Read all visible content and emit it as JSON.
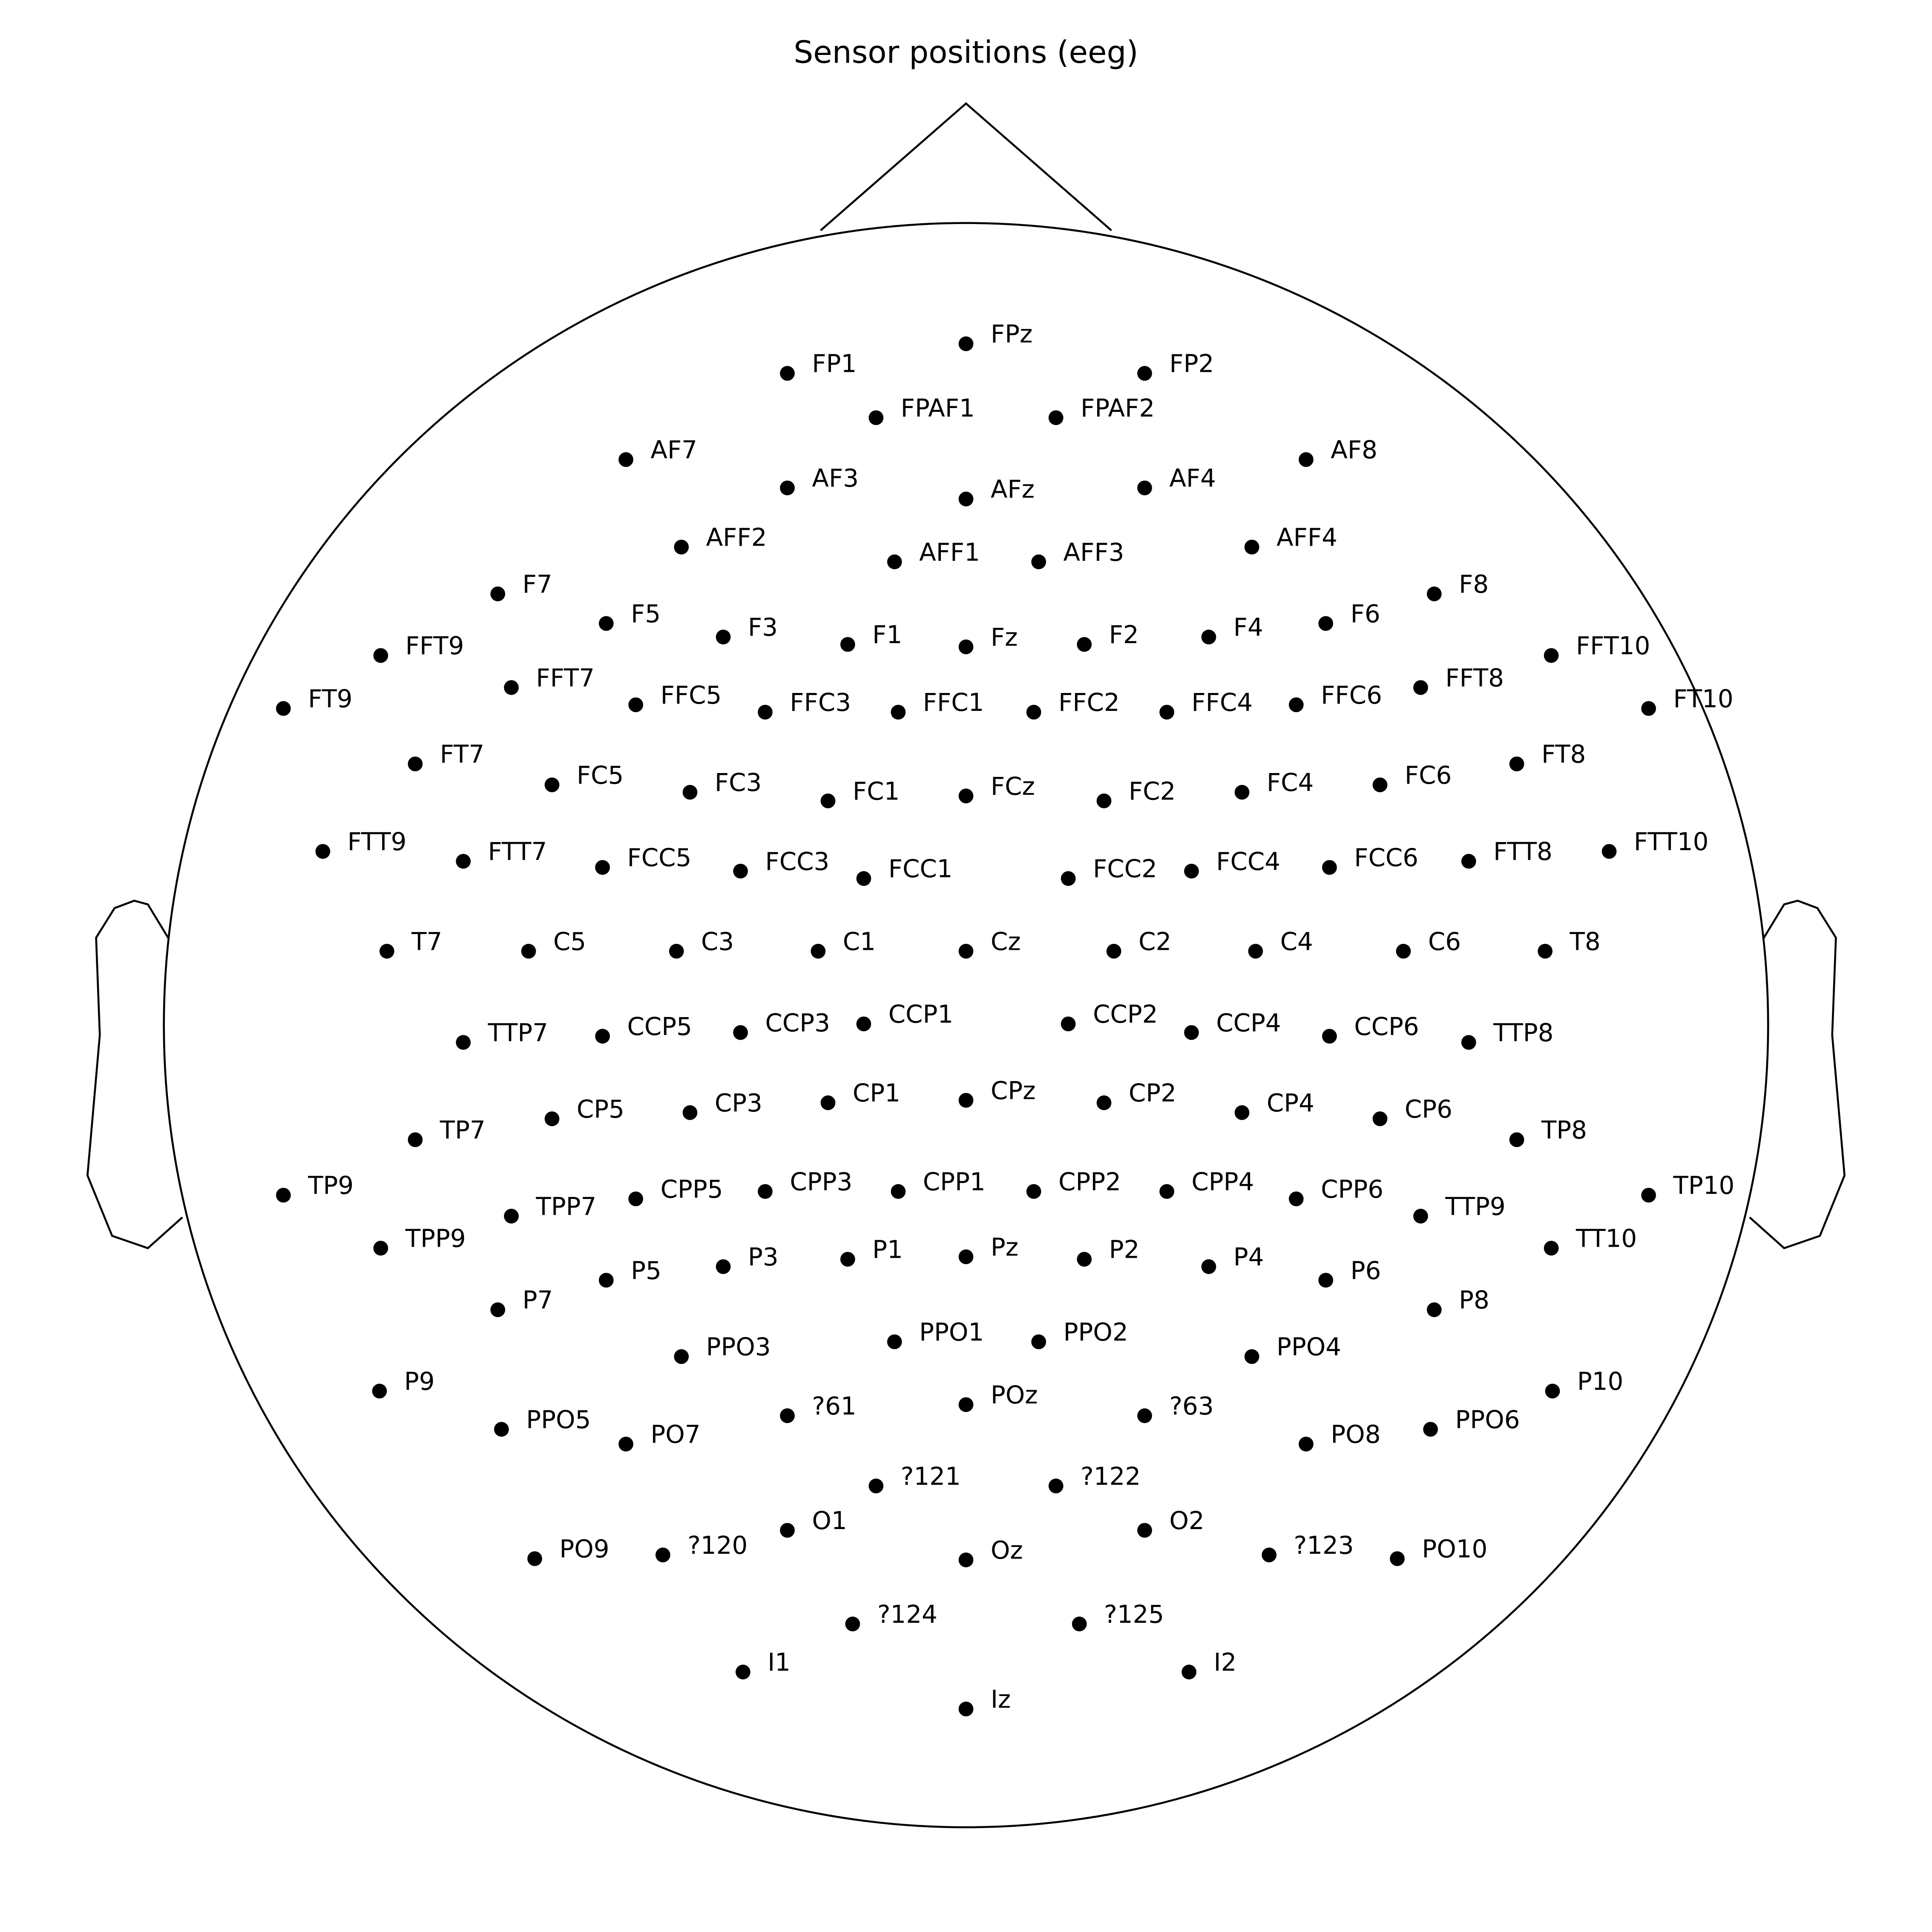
{
  "title": "Sensor positions (eeg)",
  "colors": {
    "outline": "#000000",
    "sensor": "#000000",
    "background": "#ffffff"
  },
  "sensors": [
    "FPz",
    "FP1",
    "FP2",
    "FPAF1",
    "FPAF2",
    "AF7",
    "AF8",
    "AF3",
    "AF4",
    "AFz",
    "AFF2",
    "AFF4",
    "AFF1",
    "AFF3",
    "F7",
    "F8",
    "F5",
    "F6",
    "F3",
    "F4",
    "F1",
    "F2",
    "Fz",
    "FFT9",
    "FFT10",
    "FT9",
    "FT10",
    "FFT7",
    "FFT8",
    "FFC5",
    "FFC6",
    "FFC3",
    "FFC4",
    "FFC1",
    "FFC2",
    "FT7",
    "FT8",
    "FC5",
    "FC6",
    "FC3",
    "FC4",
    "FC1",
    "FC2",
    "FCz",
    "FTT9",
    "FTT10",
    "FTT7",
    "FTT8",
    "FCC5",
    "FCC6",
    "FCC3",
    "FCC4",
    "FCC1",
    "FCC2",
    "T7",
    "C5",
    "C3",
    "C1",
    "Cz",
    "C2",
    "C4",
    "C6",
    "T8",
    "TTP7",
    "CCP5",
    "CCP3",
    "CCP1",
    "CCP2",
    "CCP4",
    "CCP6",
    "TTP8",
    "TP7",
    "CP5",
    "CP3",
    "CP1",
    "CPz",
    "CP2",
    "CP4",
    "CP6",
    "TP8",
    "TP9",
    "TP10",
    "TPP7",
    "TTP9",
    "CPP5",
    "CPP6",
    "CPP3",
    "CPP4",
    "CPP1",
    "CPP2",
    "TPP9",
    "TT10",
    "P7",
    "P8",
    "P5",
    "P6",
    "P3",
    "P4",
    "P1",
    "P2",
    "Pz",
    "PPO3",
    "PPO4",
    "PPO1",
    "PPO2",
    "P9",
    "P10",
    "PPO5",
    "PPO6",
    "PO7",
    "PO8",
    "?61",
    "?63",
    "POz",
    "?121",
    "?122",
    "PO9",
    "PO10",
    "?120",
    "?123",
    "O1",
    "O2",
    "Oz",
    "?124",
    "?125",
    "I1",
    "I2",
    "Iz"
  ]
}
